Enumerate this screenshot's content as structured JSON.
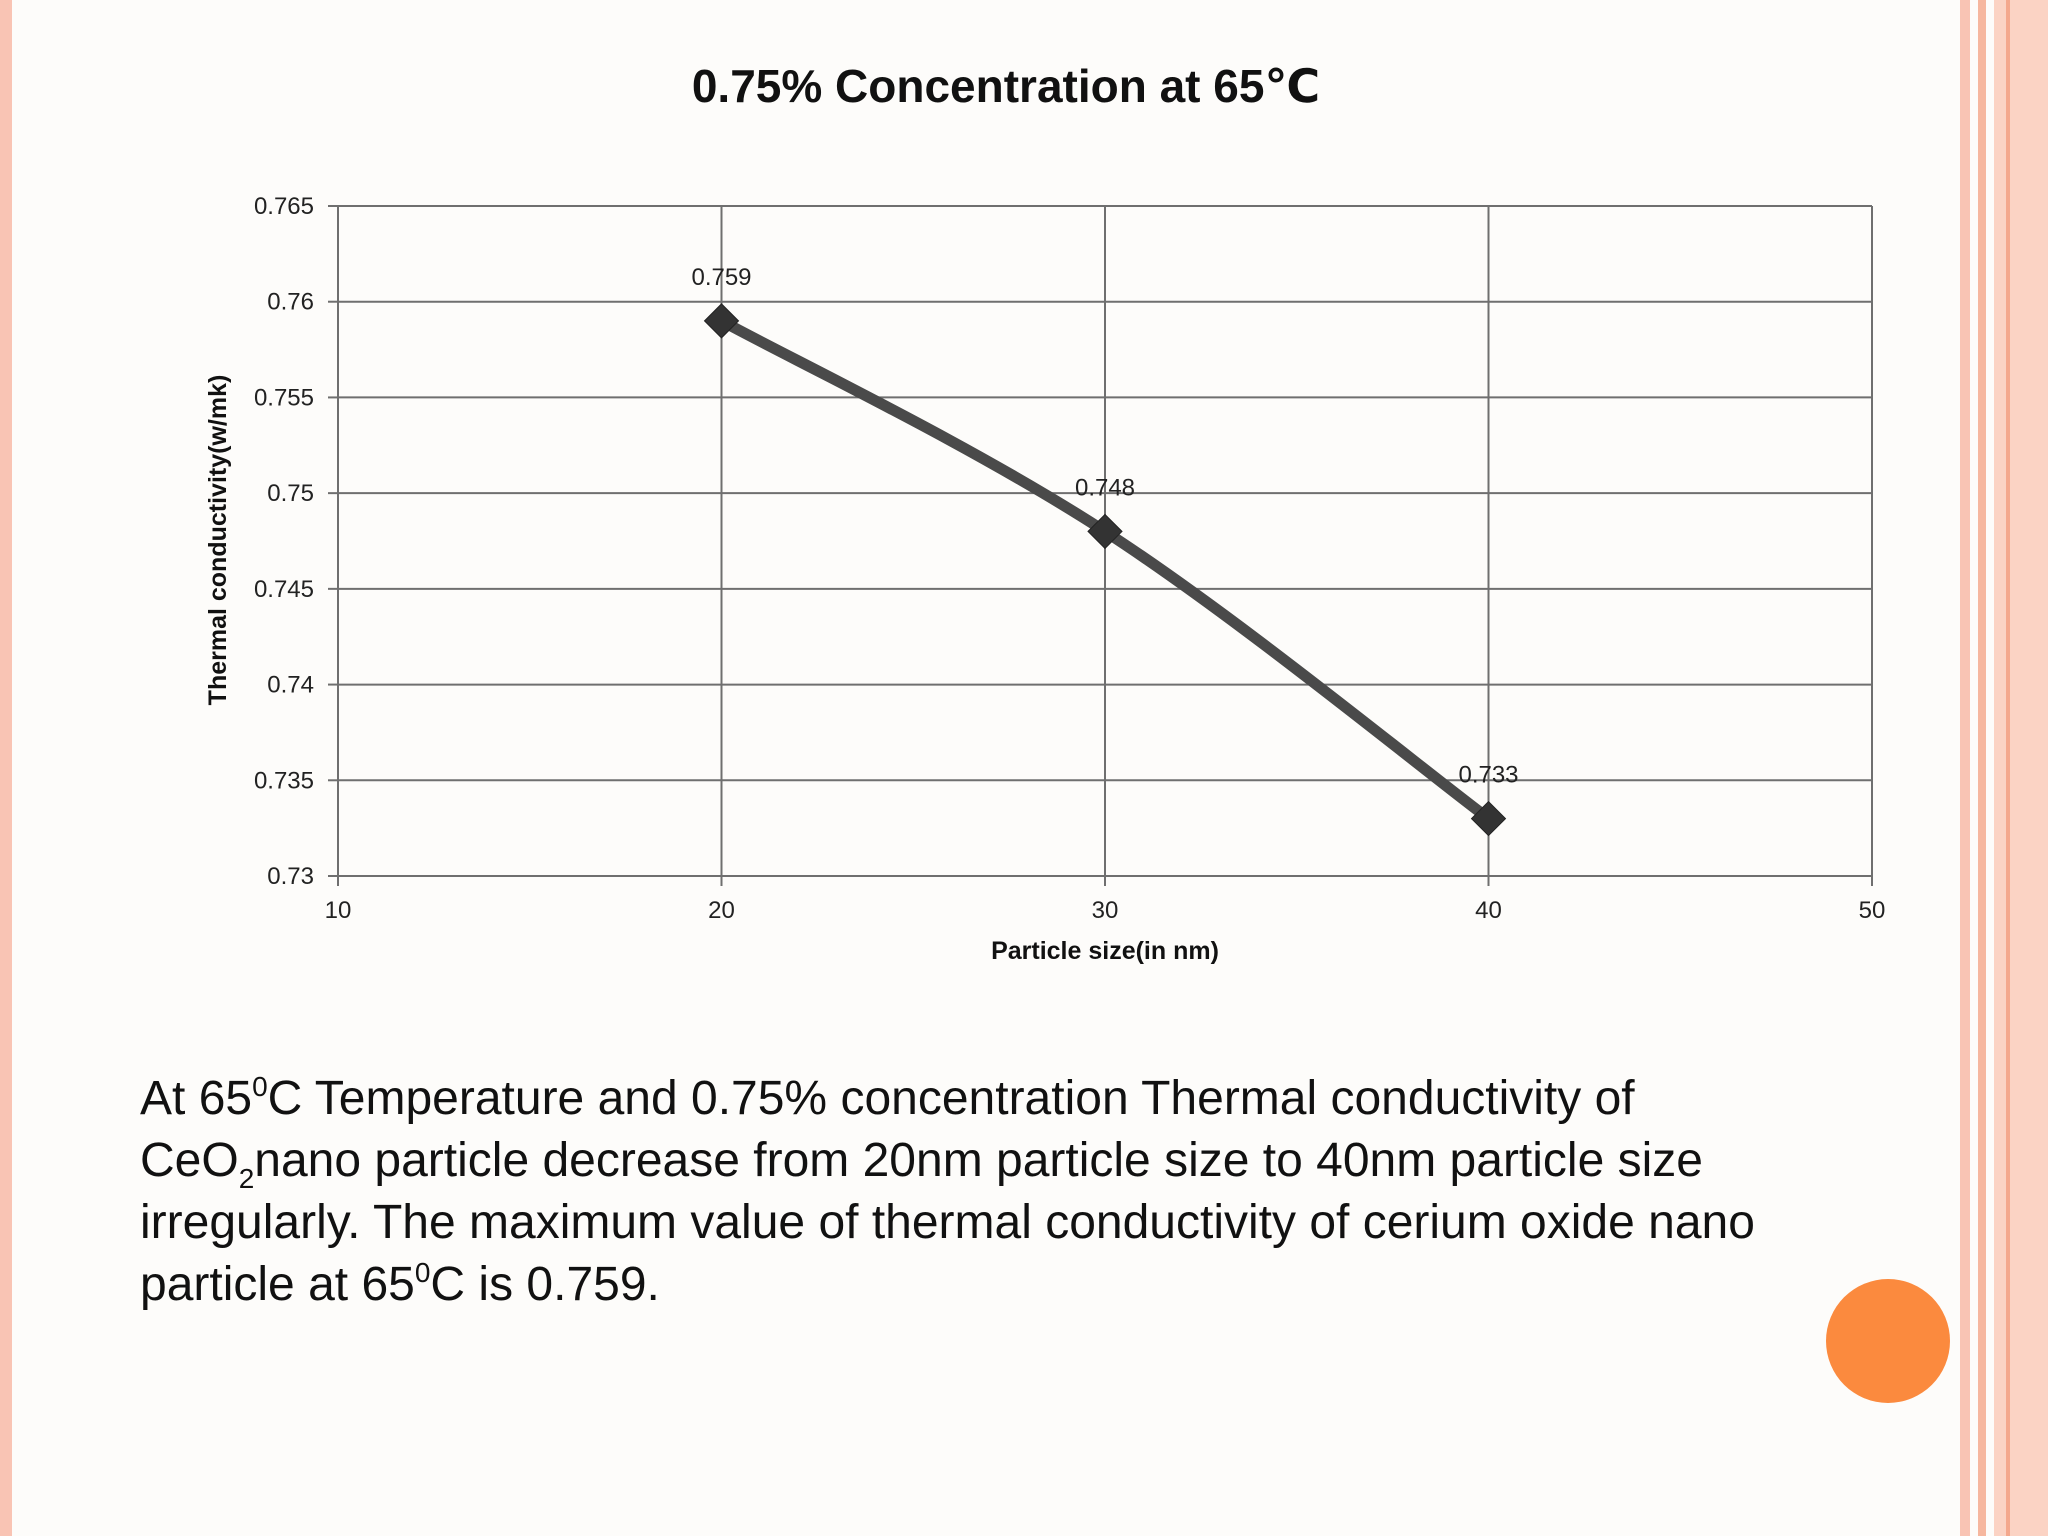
{
  "chart_data": {
    "type": "line",
    "title": "0.75% Concentration at 65℃",
    "xlabel": "Particle size(in nm)",
    "ylabel": "Thermal conductivity(w/mk)",
    "xlim": [
      10,
      50
    ],
    "ylim": [
      0.73,
      0.765
    ],
    "x_ticks": [
      "10",
      "20",
      "30",
      "40",
      "50"
    ],
    "y_ticks": [
      "0.73",
      "0.735",
      "0.74",
      "0.745",
      "0.75",
      "0.755",
      "0.76",
      "0.765"
    ],
    "grid": true,
    "legend": "none",
    "series": [
      {
        "x": [
          20,
          30,
          40
        ],
        "values": [
          0.759,
          0.748,
          0.733
        ],
        "labels": [
          "0.759",
          "0.748",
          "0.733"
        ],
        "color": "#4a4a4a",
        "marker": "diamond"
      }
    ]
  },
  "caption": {
    "line1_a": "At 65",
    "line1_sup": "0",
    "line1_b": "C Temperature and 0.75% concentration Thermal conductivity of",
    "line2_a": "CeO",
    "line2_sub": "2",
    "line2_b": "nano particle decrease from 20nm particle size to 40nm particle size",
    "line3": "irregularly. The maximum value of thermal conductivity of cerium oxide nano",
    "line4_a": "particle at 65",
    "line4_sup": "0",
    "line4_b": "C is 0.759."
  },
  "colors": {
    "accent": "#fb8a3e",
    "border": "#f9c4b4",
    "line": "#4a4a4a",
    "grid": "#6f6f6f"
  }
}
